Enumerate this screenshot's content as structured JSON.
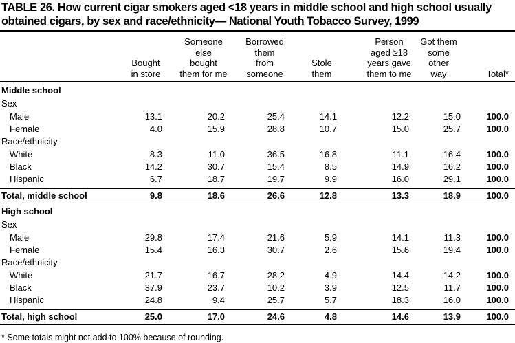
{
  "title": "TABLE 26. How current cigar smokers aged <18 years in middle school and high school usually obtained cigars, by sex and race/ethnicity— National Youth Tobacco Survey, 1999",
  "table": {
    "columns": [
      [
        "Bought",
        "in store"
      ],
      [
        "Someone",
        "else",
        "bought",
        "them for me"
      ],
      [
        "Borrowed",
        "them",
        "from",
        "someone"
      ],
      [
        "Stole",
        "them"
      ],
      [
        "Person",
        "aged ≥18",
        "years gave",
        "them to me"
      ],
      [
        "Got them",
        "some",
        "other",
        "way"
      ],
      [
        "Total*"
      ]
    ],
    "sections": [
      {
        "title": "Middle school",
        "groups": [
          {
            "label": "Sex",
            "rows": [
              {
                "label": "Male",
                "values": [
                  "13.1",
                  "20.2",
                  "25.4",
                  "14.1",
                  "12.2",
                  "15.0",
                  "100.0"
                ]
              },
              {
                "label": "Female",
                "values": [
                  "4.0",
                  "15.9",
                  "28.8",
                  "10.7",
                  "15.0",
                  "25.7",
                  "100.0"
                ]
              }
            ]
          },
          {
            "label": "Race/ethnicity",
            "rows": [
              {
                "label": "White",
                "values": [
                  "8.3",
                  "11.0",
                  "36.5",
                  "16.8",
                  "11.1",
                  "16.4",
                  "100.0"
                ]
              },
              {
                "label": "Black",
                "values": [
                  "14.2",
                  "30.7",
                  "15.4",
                  "8.5",
                  "14.9",
                  "16.2",
                  "100.0"
                ]
              },
              {
                "label": "Hispanic",
                "values": [
                  "6.7",
                  "18.7",
                  "19.7",
                  "9.9",
                  "16.0",
                  "29.1",
                  "100.0"
                ]
              }
            ]
          }
        ],
        "total": {
          "label": "Total, middle school",
          "values": [
            "9.8",
            "18.6",
            "26.6",
            "12.8",
            "13.3",
            "18.9",
            "100.0"
          ]
        }
      },
      {
        "title": "High school",
        "groups": [
          {
            "label": "Sex",
            "rows": [
              {
                "label": "Male",
                "values": [
                  "29.8",
                  "17.4",
                  "21.6",
                  "5.9",
                  "14.1",
                  "11.3",
                  "100.0"
                ]
              },
              {
                "label": "Female",
                "values": [
                  "15.4",
                  "16.3",
                  "30.7",
                  "2.6",
                  "15.6",
                  "19.4",
                  "100.0"
                ]
              }
            ]
          },
          {
            "label": "Race/ethnicity",
            "rows": [
              {
                "label": "White",
                "values": [
                  "21.7",
                  "16.7",
                  "28.2",
                  "4.9",
                  "14.4",
                  "14.2",
                  "100.0"
                ]
              },
              {
                "label": "Black",
                "values": [
                  "37.9",
                  "23.7",
                  "10.2",
                  "3.9",
                  "12.5",
                  "11.7",
                  "100.0"
                ]
              },
              {
                "label": "Hispanic",
                "values": [
                  "24.8",
                  "9.4",
                  "25.7",
                  "5.7",
                  "18.3",
                  "16.0",
                  "100.0"
                ]
              }
            ]
          }
        ],
        "total": {
          "label": "Total, high school",
          "values": [
            "25.0",
            "17.0",
            "24.6",
            "4.8",
            "14.6",
            "13.9",
            "100.0"
          ]
        }
      }
    ]
  },
  "footnote": "* Some totals might not add to 100% because of rounding."
}
